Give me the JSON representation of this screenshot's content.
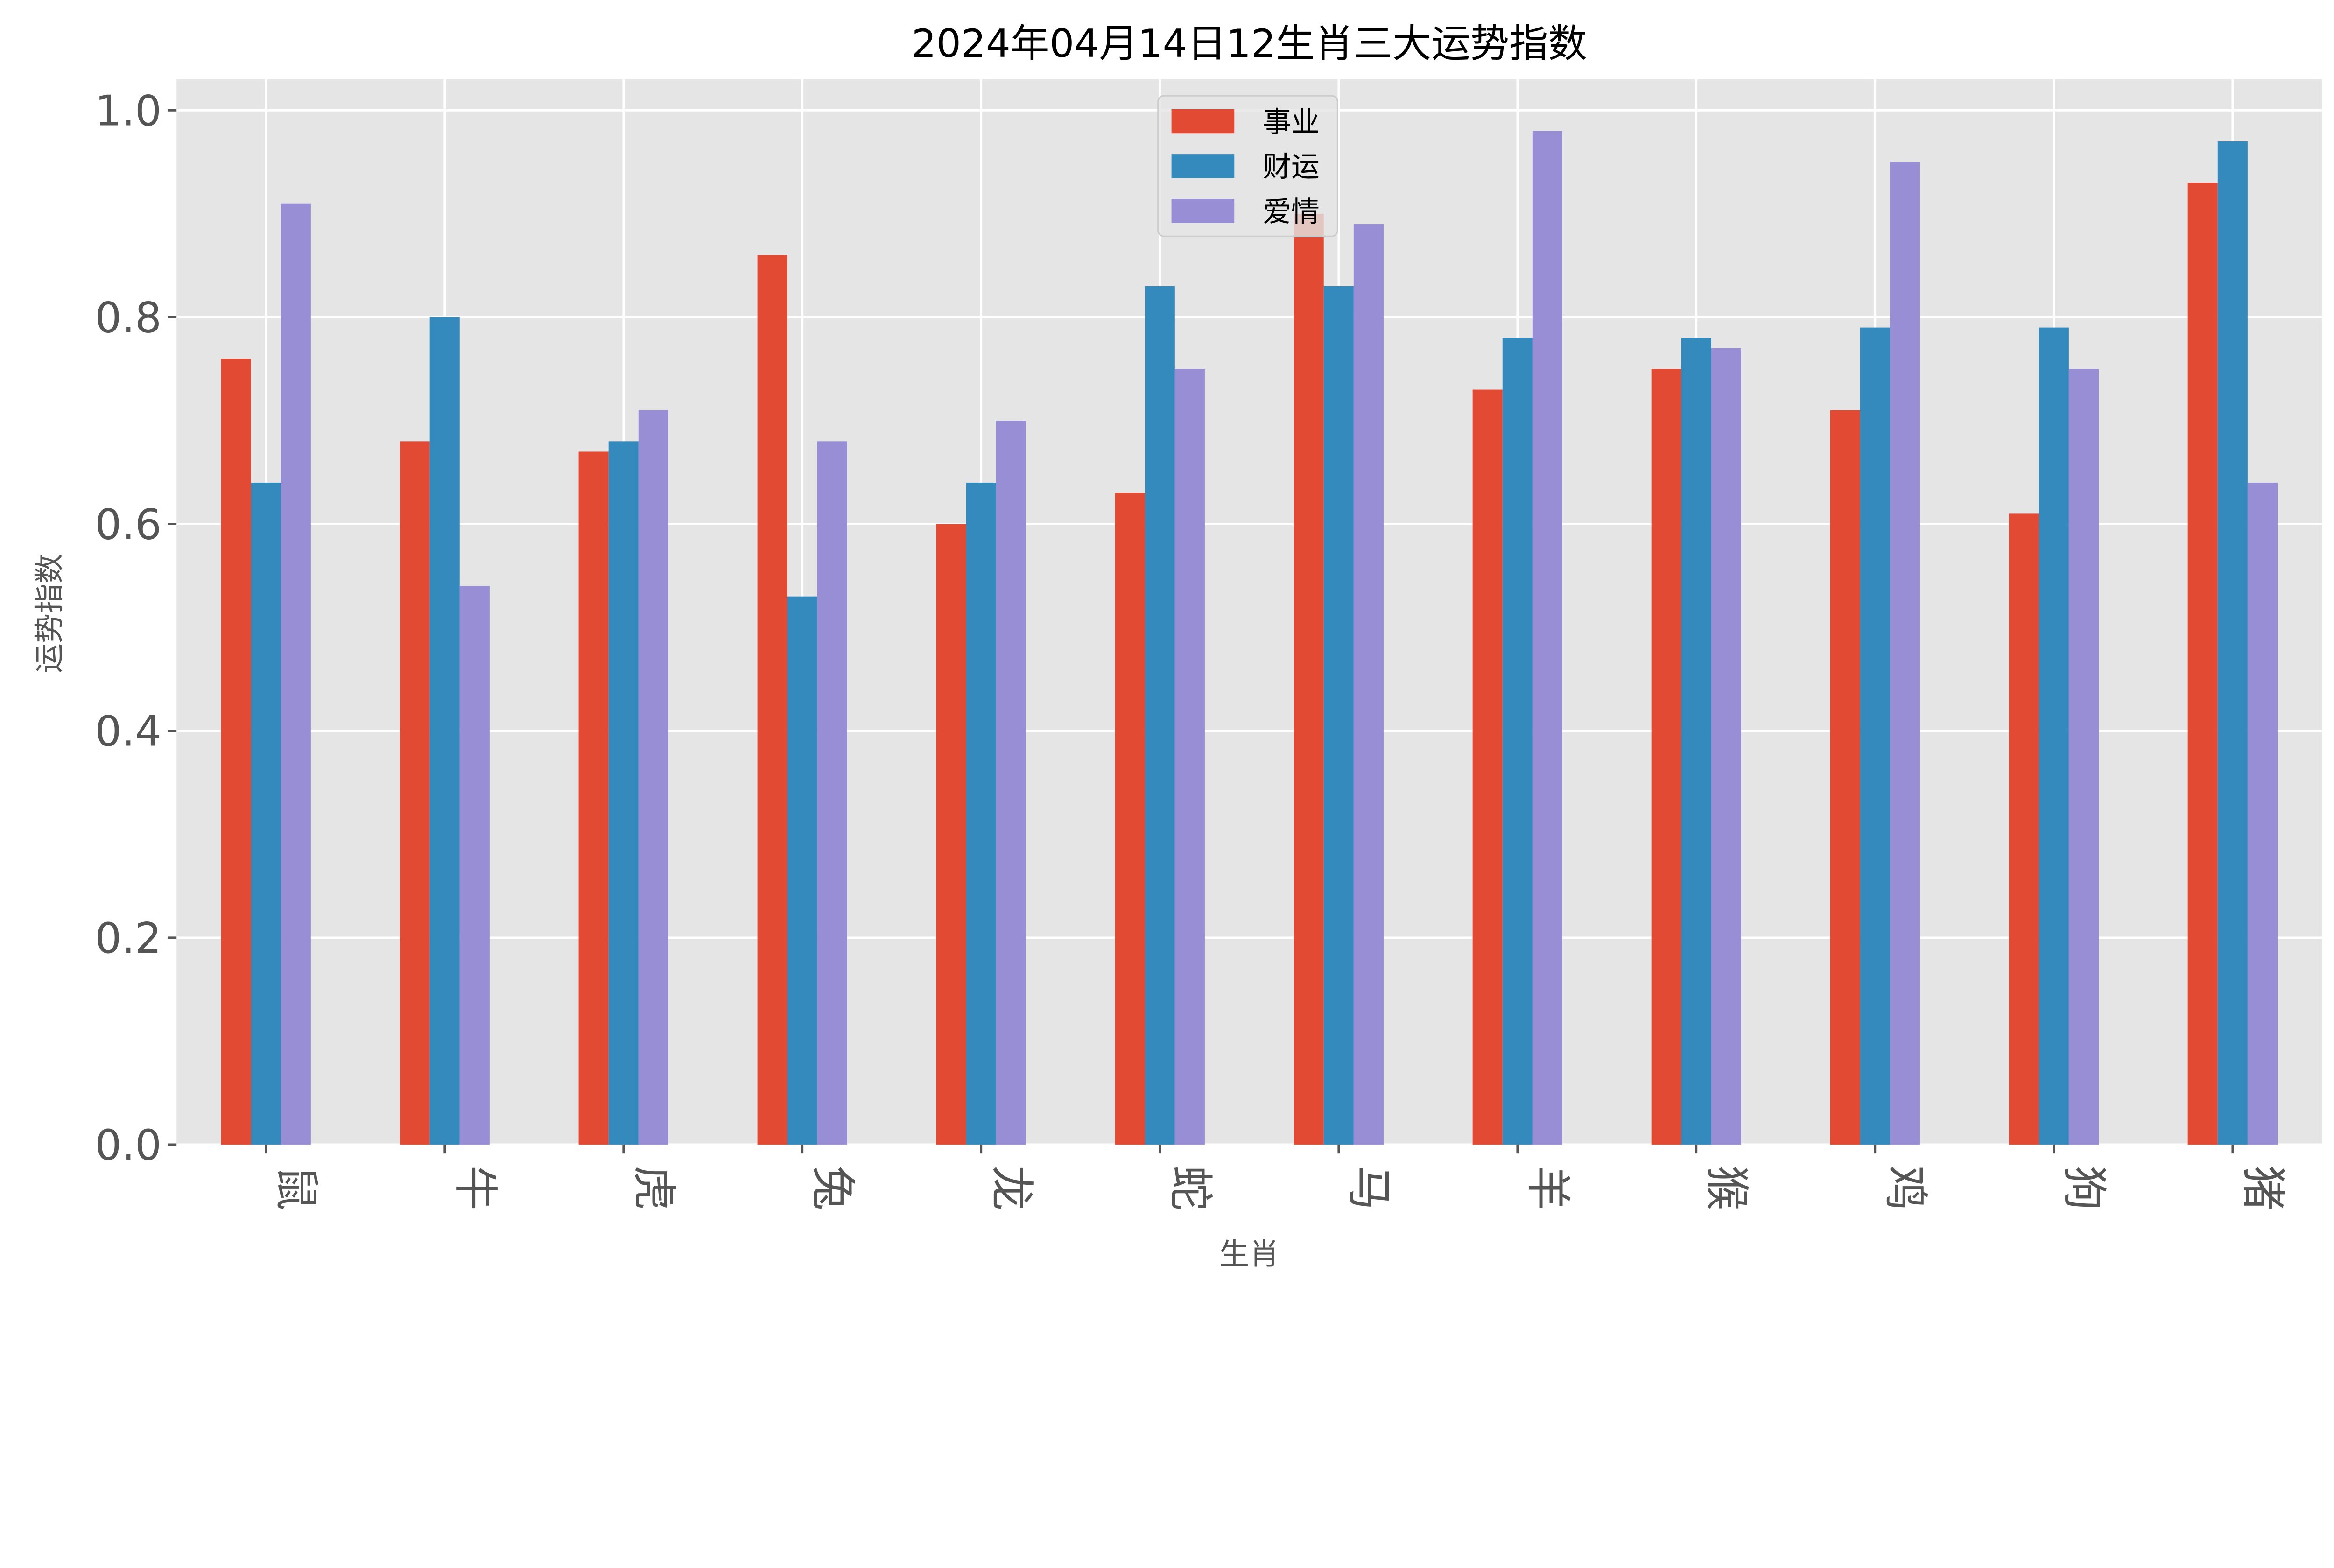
{
  "chart_data": {
    "type": "bar",
    "title": "2024年04月14日12生肖三大运势指数",
    "xlabel": "生肖",
    "ylabel": "运势指数",
    "categories": [
      "鼠",
      "牛",
      "虎",
      "兔",
      "龙",
      "蛇",
      "马",
      "羊",
      "猴",
      "鸡",
      "狗",
      "猪"
    ],
    "series": [
      {
        "name": "事业",
        "color": "#E24A33",
        "values": [
          0.76,
          0.68,
          0.67,
          0.86,
          0.6,
          0.63,
          0.9,
          0.73,
          0.75,
          0.71,
          0.61,
          0.93
        ]
      },
      {
        "name": "财运",
        "color": "#348ABD",
        "values": [
          0.64,
          0.8,
          0.68,
          0.53,
          0.64,
          0.83,
          0.83,
          0.78,
          0.78,
          0.79,
          0.79,
          0.97
        ]
      },
      {
        "name": "爱情",
        "color": "#988ED5",
        "values": [
          0.91,
          0.54,
          0.71,
          0.68,
          0.7,
          0.75,
          0.89,
          0.98,
          0.77,
          0.95,
          0.75,
          0.64
        ]
      }
    ],
    "ylim": [
      0,
      1.03
    ],
    "yticks": [
      "0.0",
      "0.2",
      "0.4",
      "0.6",
      "0.8",
      "1.0"
    ],
    "grid": true,
    "legend_position": "top-center",
    "style": "ggplot",
    "background": "#E5E5E5"
  }
}
